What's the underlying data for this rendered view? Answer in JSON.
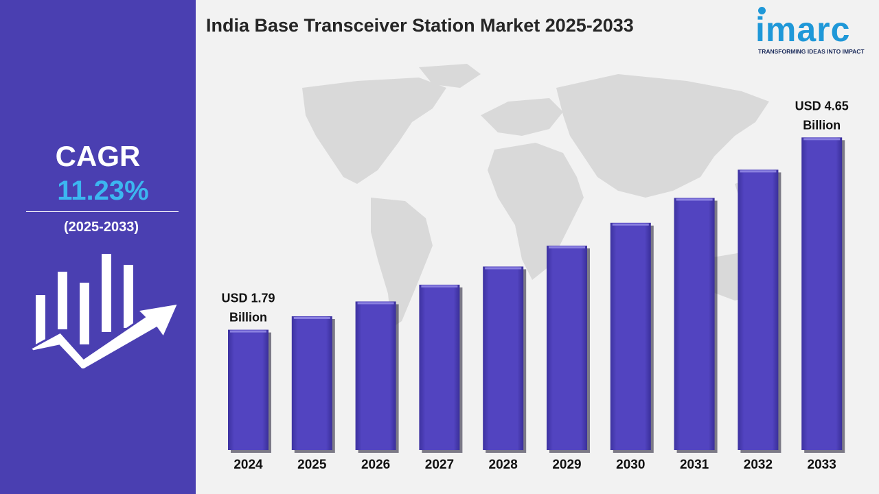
{
  "header": {
    "title": "India Base Transceiver Station Market 2025-2033"
  },
  "logo": {
    "word": "imarc",
    "tagline": "TRANSFORMING IDEAS INTO IMPACT"
  },
  "sidebar": {
    "cagr_label": "CAGR",
    "cagr_value": "11.23%",
    "period": "(2025-2033)",
    "icon": "bar-chart-growth-arrow-icon"
  },
  "colors": {
    "sidebar": "#4a3fb1",
    "bar": "#5244c0",
    "cagr_value": "#3cb6f0",
    "logo": "#1f98d8"
  },
  "chart_data": {
    "type": "bar",
    "title": "India Base Transceiver Station Market 2025-2033",
    "categories": [
      "2024",
      "2025",
      "2026",
      "2027",
      "2028",
      "2029",
      "2030",
      "2031",
      "2032",
      "2033"
    ],
    "values": [
      1.79,
      1.99,
      2.21,
      2.46,
      2.73,
      3.04,
      3.38,
      3.75,
      4.17,
      4.65
    ],
    "unit": "USD Billion",
    "annotations": [
      {
        "index": 0,
        "lines": [
          "USD 1.79",
          "Billion"
        ]
      },
      {
        "index": 9,
        "lines": [
          "USD 4.65",
          "Billion"
        ]
      }
    ],
    "grid": false,
    "legend": "none"
  }
}
